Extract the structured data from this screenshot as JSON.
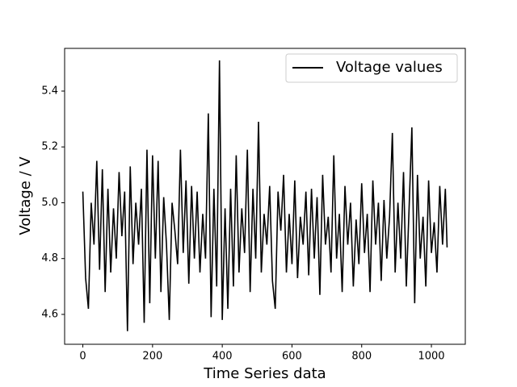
{
  "chart_data": {
    "type": "line",
    "xlabel": "Time Series data",
    "ylabel": "Voltage / V",
    "x": [
      0,
      8,
      16,
      24,
      32,
      40,
      48,
      56,
      64,
      72,
      80,
      88,
      96,
      104,
      112,
      120,
      128,
      136,
      144,
      152,
      160,
      168,
      176,
      184,
      192,
      200,
      208,
      216,
      224,
      232,
      240,
      248,
      256,
      264,
      272,
      280,
      288,
      296,
      304,
      312,
      320,
      328,
      336,
      344,
      352,
      360,
      368,
      376,
      384,
      392,
      400,
      408,
      416,
      424,
      432,
      440,
      448,
      456,
      464,
      472,
      480,
      488,
      496,
      504,
      512,
      520,
      528,
      536,
      544,
      552,
      560,
      568,
      576,
      584,
      592,
      600,
      608,
      616,
      624,
      632,
      640,
      648,
      656,
      664,
      672,
      680,
      688,
      696,
      704,
      712,
      720,
      728,
      736,
      744,
      752,
      760,
      768,
      776,
      784,
      792,
      800,
      808,
      816,
      824,
      832,
      840,
      848,
      856,
      864,
      872,
      880,
      888,
      896,
      904,
      912,
      920,
      928,
      936,
      944,
      952,
      960,
      968,
      976,
      984,
      992,
      1000,
      1008,
      1016,
      1024,
      1032,
      1040,
      1045
    ],
    "series": [
      {
        "name": "Voltage values",
        "color": "#000000",
        "values": [
          5.04,
          4.73,
          4.62,
          5.0,
          4.85,
          5.15,
          4.76,
          5.12,
          4.68,
          5.05,
          4.75,
          4.98,
          4.8,
          5.11,
          4.88,
          5.04,
          4.54,
          5.13,
          4.78,
          5.0,
          4.85,
          5.05,
          4.57,
          5.19,
          4.64,
          5.17,
          4.8,
          5.15,
          4.68,
          5.02,
          4.85,
          4.58,
          5.0,
          4.9,
          4.78,
          5.19,
          4.82,
          5.08,
          4.71,
          5.06,
          4.8,
          5.04,
          4.75,
          4.96,
          4.8,
          5.32,
          4.59,
          5.05,
          4.7,
          5.51,
          4.58,
          4.98,
          4.62,
          5.05,
          4.7,
          5.17,
          4.75,
          4.98,
          4.82,
          5.19,
          4.68,
          5.05,
          4.8,
          5.29,
          4.75,
          4.96,
          4.85,
          5.06,
          4.72,
          4.62,
          5.04,
          4.9,
          5.1,
          4.75,
          4.96,
          4.78,
          5.08,
          4.73,
          4.95,
          4.85,
          5.04,
          4.74,
          5.05,
          4.8,
          5.02,
          4.67,
          5.1,
          4.85,
          4.95,
          4.75,
          5.17,
          4.8,
          4.96,
          4.68,
          5.06,
          4.85,
          5.0,
          4.7,
          4.94,
          4.78,
          5.07,
          4.82,
          4.96,
          4.68,
          5.08,
          4.85,
          5.0,
          4.72,
          5.01,
          4.8,
          4.95,
          5.25,
          4.75,
          5.0,
          4.8,
          5.11,
          4.7,
          4.98,
          5.27,
          4.64,
          5.1,
          4.8,
          4.95,
          4.7,
          5.08,
          4.82,
          4.93,
          4.75,
          5.06,
          4.85,
          5.05,
          4.84
        ]
      }
    ],
    "xlim": [
      -52.25,
      1097.25
    ],
    "xticks": [
      0,
      200,
      400,
      600,
      800,
      1000
    ],
    "ylim": [
      4.493,
      5.553
    ],
    "yticks": [
      4.6,
      4.8,
      {
        "value": 5,
        "label": "5.0"
      },
      5.2,
      5.4
    ],
    "legend": "upper right",
    "grid": false
  }
}
